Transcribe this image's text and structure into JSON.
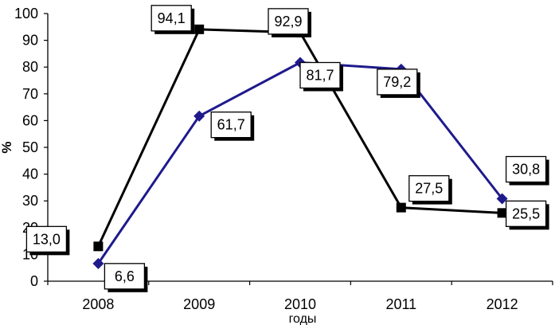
{
  "chart_data": {
    "type": "line",
    "categories": [
      "2008",
      "2009",
      "2010",
      "2011",
      "2012"
    ],
    "xlabel": "годы",
    "ylabel": "%",
    "ylim": [
      0,
      100
    ],
    "yticks": [
      "0",
      "10",
      "20",
      "30",
      "40",
      "50",
      "60",
      "70",
      "80",
      "90",
      "100"
    ],
    "grid": false,
    "legend": "none",
    "series": [
      {
        "color": "#000000",
        "marker": "square",
        "values": [
          13.0,
          94.1,
          92.9,
          27.5,
          25.5
        ],
        "labels": [
          "13,0",
          "94,1",
          "92,9",
          "27,5",
          "25,5"
        ]
      },
      {
        "color": "#1f1a8c",
        "marker": "diamond",
        "values": [
          6.6,
          61.7,
          81.7,
          79.2,
          30.8
        ],
        "labels": [
          "6,6",
          "61,7",
          "81,7",
          "79,2",
          "30,8"
        ]
      }
    ]
  }
}
